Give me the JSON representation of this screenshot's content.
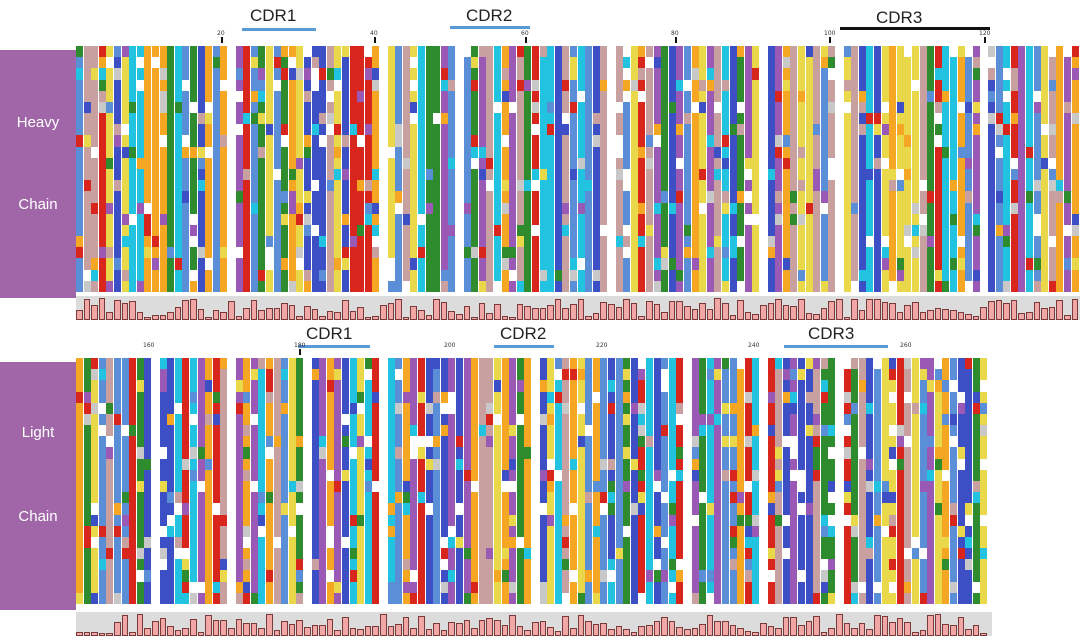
{
  "heavy_panel": {
    "label_lines": [
      "Heavy",
      "Chain"
    ],
    "cdrs": [
      {
        "label": "CDR1",
        "bar": "blue"
      },
      {
        "label": "CDR2",
        "bar": "blue"
      },
      {
        "label": "CDR3",
        "bar": "black"
      }
    ],
    "position_ticks": [
      "20",
      "40",
      "60",
      "80",
      "100",
      "120"
    ]
  },
  "light_panel": {
    "label_lines": [
      "Light",
      "Chain"
    ],
    "cdrs": [
      {
        "label": "CDR1",
        "bar": "blue"
      },
      {
        "label": "CDR2",
        "bar": "blue"
      },
      {
        "label": "CDR3",
        "bar": "blue"
      }
    ],
    "position_ticks": [
      "160",
      "180",
      "200",
      "220",
      "240",
      "260"
    ]
  },
  "colors": {
    "label_background": "#a066a8",
    "cdr_bar_blue": "#5b9bd5",
    "cdr_bar_black": "#111111",
    "conservation_bar": "#f2a7a7",
    "residue_palette": [
      "#2e8b2e",
      "#22c3e0",
      "#f5a623",
      "#e8d84a",
      "#3c4fc4",
      "#d9261c",
      "#c9a0a0",
      "#9b59b6",
      "#5a8fd8",
      "#ffffff",
      "#c8c8c8",
      "#ffffff",
      "#ffffff"
    ]
  }
}
